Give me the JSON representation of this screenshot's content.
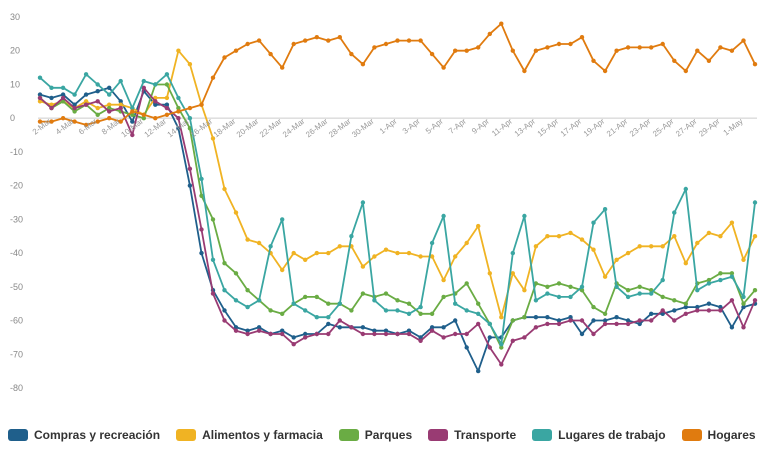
{
  "chart_data": {
    "type": "line",
    "title": "",
    "xlabel": "",
    "ylabel": "",
    "ylim": [
      -80,
      30
    ],
    "yticks": [
      30,
      20,
      10,
      0,
      -10,
      -20,
      -30,
      -40,
      -50,
      -60,
      -70,
      -80
    ],
    "grid": false,
    "legend_position": "bottom",
    "x": [
      "1-Mar",
      "2-Mar",
      "3-Mar",
      "4-Mar",
      "5-Mar",
      "6-Mar",
      "7-Mar",
      "8-Mar",
      "9-Mar",
      "10-Mar",
      "11-Mar",
      "12-Mar",
      "13-Mar",
      "14-Mar",
      "15-Mar",
      "16-Mar",
      "17-Mar",
      "18-Mar",
      "19-Mar",
      "20-Mar",
      "21-Mar",
      "22-Mar",
      "23-Mar",
      "24-Mar",
      "25-Mar",
      "26-Mar",
      "27-Mar",
      "28-Mar",
      "29-Mar",
      "30-Mar",
      "31-Mar",
      "1-Apr",
      "2-Apr",
      "3-Apr",
      "4-Apr",
      "5-Apr",
      "6-Apr",
      "7-Apr",
      "8-Apr",
      "9-Apr",
      "10-Apr",
      "11-Apr",
      "12-Apr",
      "13-Apr",
      "14-Apr",
      "15-Apr",
      "16-Apr",
      "17-Apr",
      "18-Apr",
      "19-Apr",
      "20-Apr",
      "21-Apr",
      "22-Apr",
      "23-Apr",
      "24-Apr",
      "25-Apr",
      "26-Apr",
      "27-Apr",
      "28-Apr",
      "29-Apr",
      "30-Apr",
      "1-May",
      "2-May"
    ],
    "tick_labels": [
      "2-Mar",
      "4-Mar",
      "6-Mar",
      "8-Mar",
      "10-Mar",
      "12-Mar",
      "14-Mar",
      "16-Mar",
      "18-Mar",
      "20-Mar",
      "22-Mar",
      "24-Mar",
      "26-Mar",
      "28-Mar",
      "30-Mar",
      "1-Apr",
      "3-Apr",
      "5-Apr",
      "7-Apr",
      "9-Apr",
      "11-Apr",
      "13-Apr",
      "15-Apr",
      "17-Apr",
      "19-Apr",
      "21-Apr",
      "23-Apr",
      "25-Apr",
      "27-Apr",
      "29-Apr",
      "1-May"
    ],
    "series": [
      {
        "name": "Compras y recreación",
        "color": "#1f5f8b",
        "values": [
          7,
          6,
          7,
          4,
          7,
          8,
          9,
          5,
          -1,
          8,
          4,
          4,
          -3,
          -20,
          -40,
          -51,
          -57,
          -62,
          -63,
          -62,
          -64,
          -63,
          -65,
          -64,
          -64,
          -61,
          -62,
          -62,
          -62,
          -63,
          -63,
          -64,
          -63,
          -65,
          -62,
          -62,
          -60,
          -68,
          -75,
          -65,
          -65,
          -60,
          -59,
          -59,
          -59,
          -60,
          -59,
          -64,
          -60,
          -60,
          -59,
          -60,
          -61,
          -58,
          -58,
          -57,
          -56,
          -56,
          -55,
          -56,
          -62,
          -56,
          -55
        ]
      },
      {
        "name": "Alimentos y farmacia",
        "color": "#f0b323",
        "values": [
          5,
          4,
          5,
          3,
          5,
          3,
          4,
          4,
          3,
          1,
          6,
          6,
          20,
          16,
          4,
          -6,
          -21,
          -28,
          -36,
          -37,
          -40,
          -45,
          -40,
          -42,
          -40,
          -40,
          -38,
          -38,
          -44,
          -41,
          -39,
          -40,
          -40,
          -41,
          -41,
          -48,
          -41,
          -37,
          -32,
          -46,
          -59,
          -46,
          -51,
          -38,
          -35,
          -35,
          -34,
          -36,
          -39,
          -47,
          -42,
          -40,
          -38,
          -38,
          -38,
          -35,
          -43,
          -37,
          -34,
          -35,
          -31,
          -42,
          -35
        ]
      },
      {
        "name": "Parques",
        "color": "#6aac44",
        "values": [
          6,
          3,
          5,
          2,
          4,
          1,
          3,
          2,
          1,
          0,
          10,
          10,
          3,
          -3,
          -23,
          -30,
          -43,
          -46,
          -51,
          -54,
          -57,
          -58,
          -55,
          -53,
          -53,
          -55,
          -55,
          -57,
          -52,
          -53,
          -52,
          -54,
          -55,
          -58,
          -58,
          -53,
          -52,
          -49,
          -55,
          -61,
          -68,
          -60,
          -59,
          -49,
          -50,
          -49,
          -50,
          -51,
          -56,
          -58,
          -49,
          -51,
          -50,
          -51,
          -53,
          -54,
          -55,
          -49,
          -48,
          -46,
          -46,
          -55,
          -51
        ]
      },
      {
        "name": "Transporte",
        "color": "#993b73",
        "values": [
          6,
          3,
          6,
          3,
          4,
          5,
          2,
          3,
          -5,
          9,
          5,
          3,
          0,
          -15,
          -33,
          -52,
          -60,
          -63,
          -64,
          -63,
          -64,
          -64,
          -67,
          -65,
          -64,
          -64,
          -60,
          -62,
          -64,
          -64,
          -64,
          -64,
          -64,
          -66,
          -63,
          -65,
          -64,
          -64,
          -61,
          -68,
          -73,
          -66,
          -65,
          -62,
          -61,
          -61,
          -60,
          -60,
          -64,
          -61,
          -61,
          -61,
          -60,
          -60,
          -57,
          -60,
          -58,
          -57,
          -57,
          -57,
          -54,
          -62,
          -54
        ]
      },
      {
        "name": "Lugares de trabajo",
        "color": "#3aa6a2",
        "values": [
          12,
          9,
          9,
          7,
          13,
          10,
          7,
          11,
          3,
          11,
          10,
          13,
          6,
          0,
          -18,
          -42,
          -51,
          -54,
          -56,
          -54,
          -38,
          -30,
          -55,
          -57,
          -59,
          -59,
          -55,
          -35,
          -25,
          -54,
          -57,
          -57,
          -58,
          -56,
          -37,
          -29,
          -55,
          -57,
          -58,
          -61,
          -67,
          -40,
          -29,
          -54,
          -52,
          -53,
          -53,
          -50,
          -31,
          -27,
          -50,
          -53,
          -52,
          -52,
          -48,
          -28,
          -21,
          -51,
          -49,
          -48,
          -47,
          -53,
          -25
        ]
      },
      {
        "name": "Hogares",
        "color": "#e07b0f",
        "values": [
          -1,
          -1,
          0,
          -1,
          -2,
          -1,
          0,
          -1,
          2,
          1,
          0,
          1,
          2,
          3,
          4,
          12,
          18,
          20,
          22,
          23,
          19,
          15,
          22,
          23,
          24,
          23,
          24,
          19,
          16,
          21,
          22,
          23,
          23,
          23,
          19,
          15,
          20,
          20,
          21,
          25,
          28,
          20,
          14,
          20,
          21,
          22,
          22,
          24,
          17,
          14,
          20,
          21,
          21,
          21,
          22,
          17,
          14,
          20,
          17,
          21,
          20,
          23,
          16
        ]
      }
    ]
  }
}
